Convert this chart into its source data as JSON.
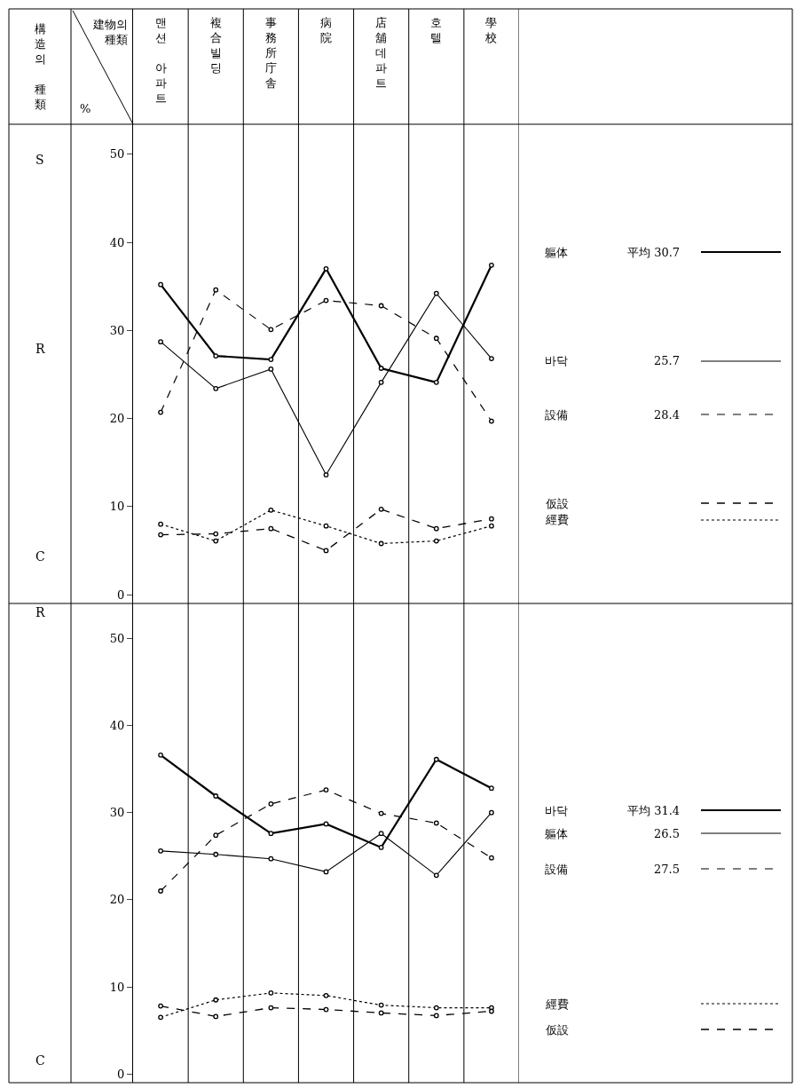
{
  "chart_data": [
    {
      "type": "line",
      "xlabel": "建物의 種類",
      "ylabel": "%",
      "categories": [
        "맨션 아파트",
        "複合빌딩",
        "事務所庁舎",
        "病院",
        "店舖데파트",
        "호텔",
        "學校"
      ],
      "ylim": [
        -1,
        66.5
      ],
      "yticks": [
        0,
        10,
        20,
        30,
        40,
        50
      ],
      "marker": "circle",
      "legend": "right",
      "grid": false,
      "series": [
        {
          "name": "軀体",
          "color": "#000000",
          "line_style": "solid",
          "values": [
            35.2,
            27.1,
            26.7,
            37.0,
            25.7,
            24.1,
            37.4
          ]
        },
        {
          "name": "바닥",
          "color": "#000000",
          "line_style": "solid",
          "values": [
            28.7,
            23.4,
            25.6,
            13.6,
            24.1,
            34.2,
            26.8
          ]
        },
        {
          "name": "設備",
          "color": "#000000",
          "line_style": "dashed",
          "values": [
            20.7,
            34.6,
            30.1,
            33.4,
            32.8,
            29.1,
            19.7
          ]
        },
        {
          "name": "仮設",
          "color": "#000000",
          "line_style": "dashed",
          "values": [
            6.8,
            6.9,
            7.5,
            5.0,
            9.7,
            7.5,
            8.6
          ]
        },
        {
          "name": "經費",
          "color": "#000000",
          "line_style": "dotted",
          "values": [
            8.0,
            6.1,
            9.6,
            7.8,
            5.8,
            6.1,
            7.8
          ]
        }
      ],
      "annotations": [
        "構造의 種類",
        "S",
        "R",
        "C",
        "平均 30.7",
        "25.7",
        "28.4"
      ]
    },
    {
      "type": "line",
      "categories": [
        "맨션 아파트",
        "複合빌딩",
        "事務所庁舎",
        "病院",
        "店舖데파트",
        "호텔",
        "學校"
      ],
      "ylim": [
        -1,
        54
      ],
      "yticks": [
        0,
        10,
        20,
        30,
        40,
        50
      ],
      "marker": "circle",
      "legend": "right",
      "grid": false,
      "tick_labels": "y",
      "series": [
        {
          "name": "바닥",
          "color": "#000000",
          "line_style": "solid",
          "values": [
            36.6,
            31.9,
            27.6,
            28.7,
            26.0,
            36.1,
            32.8
          ]
        },
        {
          "name": "軀体",
          "color": "#000000",
          "line_style": "solid",
          "values": [
            25.6,
            25.2,
            24.7,
            23.2,
            27.6,
            22.8,
            30.0
          ]
        },
        {
          "name": "設備",
          "color": "#000000",
          "line_style": "dashed",
          "values": [
            21.0,
            27.4,
            31.0,
            32.6,
            29.9,
            28.8,
            24.8
          ]
        },
        {
          "name": "經費",
          "color": "#000000",
          "line_style": "dotted",
          "values": [
            6.5,
            8.5,
            9.3,
            9.0,
            7.9,
            7.6,
            7.6
          ]
        },
        {
          "name": "仮設",
          "color": "#000000",
          "line_style": "dashed",
          "values": [
            7.8,
            6.6,
            7.6,
            7.4,
            7.0,
            6.7,
            7.2
          ]
        }
      ],
      "annotations": [
        "R",
        "C",
        "平均 31.4",
        "26.5",
        "27.5"
      ]
    }
  ]
}
